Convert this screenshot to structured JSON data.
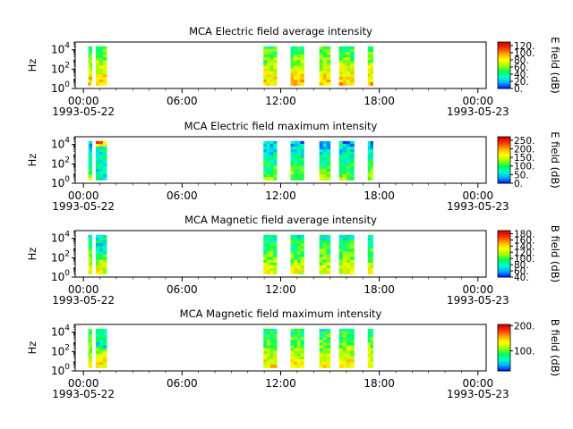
{
  "chart_data": [
    {
      "type": "heatmap",
      "title": "MCA  Electric field average intensity",
      "ylabel": "Hz",
      "yticks": [
        {
          "base": "10",
          "exp": "0",
          "v": 0
        },
        {
          "base": "10",
          "exp": "2",
          "v": 2
        },
        {
          "base": "10",
          "exp": "4",
          "v": 4
        }
      ],
      "ylim_log10": [
        0,
        4.8
      ],
      "xticks": [
        {
          "t": 0,
          "time": "00:00",
          "date": "1993-05-22"
        },
        {
          "t": 6,
          "time": "06:00",
          "date": ""
        },
        {
          "t": 12,
          "time": "12:00",
          "date": ""
        },
        {
          "t": 18,
          "time": "18:00",
          "date": ""
        },
        {
          "t": 24,
          "time": "00:00",
          "date": "1993-05-23"
        }
      ],
      "xlim_hours": [
        -0.5,
        24.5
      ],
      "intervals_hours": [
        [
          0.3,
          0.5
        ],
        [
          0.75,
          1.4
        ],
        [
          10.95,
          11.75
        ],
        [
          12.6,
          13.4
        ],
        [
          14.35,
          15.0
        ],
        [
          15.55,
          16.45
        ],
        [
          17.3,
          17.6
        ]
      ],
      "colorbar": {
        "label": "E field (dB)",
        "min": 0,
        "max": 130,
        "ticks": [
          0,
          20,
          40,
          60,
          80,
          100,
          120
        ],
        "tick_labels": [
          "0.",
          "20.",
          "40.",
          "60.",
          "80.",
          "100.",
          "120."
        ]
      },
      "mean_level": 0.55
    },
    {
      "type": "heatmap",
      "title": "MCA  Electric field maximum intensity",
      "ylabel": "Hz",
      "yticks": [
        {
          "base": "10",
          "exp": "0",
          "v": 0
        },
        {
          "base": "10",
          "exp": "2",
          "v": 2
        },
        {
          "base": "10",
          "exp": "4",
          "v": 4
        }
      ],
      "ylim_log10": [
        0,
        4.8
      ],
      "xticks": [
        {
          "t": 0,
          "time": "00:00",
          "date": "1993-05-22"
        },
        {
          "t": 6,
          "time": "06:00",
          "date": ""
        },
        {
          "t": 12,
          "time": "12:00",
          "date": ""
        },
        {
          "t": 18,
          "time": "18:00",
          "date": ""
        },
        {
          "t": 24,
          "time": "00:00",
          "date": "1993-05-23"
        }
      ],
      "xlim_hours": [
        -0.5,
        24.5
      ],
      "intervals_hours": [
        [
          0.3,
          0.5
        ],
        [
          0.75,
          1.4
        ],
        [
          10.95,
          11.75
        ],
        [
          12.6,
          13.4
        ],
        [
          14.35,
          15.0
        ],
        [
          15.55,
          16.45
        ],
        [
          17.3,
          17.6
        ]
      ],
      "colorbar": {
        "label": "E field (dB)",
        "min": 0,
        "max": 270,
        "ticks": [
          0,
          50,
          100,
          150,
          200,
          250
        ],
        "tick_labels": [
          "0.",
          "50.",
          "100.",
          "150.",
          "200.",
          "250."
        ]
      },
      "mean_level": 0.33
    },
    {
      "type": "heatmap",
      "title": "MCA  Magnetic field average intensity",
      "ylabel": "Hz",
      "yticks": [
        {
          "base": "10",
          "exp": "0",
          "v": 0
        },
        {
          "base": "10",
          "exp": "2",
          "v": 2
        },
        {
          "base": "10",
          "exp": "4",
          "v": 4
        }
      ],
      "ylim_log10": [
        0,
        4.8
      ],
      "xticks": [
        {
          "t": 0,
          "time": "00:00",
          "date": "1993-05-22"
        },
        {
          "t": 6,
          "time": "06:00",
          "date": ""
        },
        {
          "t": 12,
          "time": "12:00",
          "date": ""
        },
        {
          "t": 18,
          "time": "18:00",
          "date": ""
        },
        {
          "t": 24,
          "time": "00:00",
          "date": "1993-05-23"
        }
      ],
      "xlim_hours": [
        -0.5,
        24.5
      ],
      "intervals_hours": [
        [
          0.3,
          0.5
        ],
        [
          0.75,
          1.4
        ],
        [
          10.95,
          11.75
        ],
        [
          12.6,
          13.4
        ],
        [
          14.35,
          15.0
        ],
        [
          15.55,
          16.45
        ],
        [
          17.3,
          17.6
        ]
      ],
      "colorbar": {
        "label": "B field (dB)",
        "min": 40,
        "max": 190,
        "ticks": [
          40,
          60,
          80,
          100,
          120,
          140,
          160,
          180
        ],
        "tick_labels": [
          "40.",
          "60.",
          "80.",
          "100.",
          "120.",
          "140.",
          "160.",
          "180."
        ]
      },
      "mean_level": 0.45
    },
    {
      "type": "heatmap",
      "title": "MCA  Magnetic field maximum intensity",
      "ylabel": "Hz",
      "yticks": [
        {
          "base": "10",
          "exp": "0",
          "v": 0
        },
        {
          "base": "10",
          "exp": "2",
          "v": 2
        },
        {
          "base": "10",
          "exp": "4",
          "v": 4
        }
      ],
      "ylim_log10": [
        0,
        4.8
      ],
      "xticks": [
        {
          "t": 0,
          "time": "00:00",
          "date": "1993-05-22"
        },
        {
          "t": 6,
          "time": "06:00",
          "date": ""
        },
        {
          "t": 12,
          "time": "12:00",
          "date": ""
        },
        {
          "t": 18,
          "time": "18:00",
          "date": ""
        },
        {
          "t": 24,
          "time": "00:00",
          "date": "1993-05-23"
        }
      ],
      "xlim_hours": [
        -0.5,
        24.5
      ],
      "intervals_hours": [
        [
          0.3,
          0.5
        ],
        [
          0.75,
          1.4
        ],
        [
          10.95,
          11.75
        ],
        [
          12.6,
          13.4
        ],
        [
          14.35,
          15.0
        ],
        [
          15.55,
          16.45
        ],
        [
          17.3,
          17.6
        ]
      ],
      "colorbar": {
        "label": "B field (dB)",
        "min": 20,
        "max": 205,
        "ticks": [
          100,
          200
        ],
        "tick_labels": [
          "100.",
          "200."
        ]
      },
      "mean_level": 0.5
    }
  ],
  "colormap": [
    "#0000ff",
    "#00aaff",
    "#00ffcc",
    "#00ff55",
    "#aaff00",
    "#ffff00",
    "#ffaa00",
    "#ff3300",
    "#cc0000"
  ]
}
